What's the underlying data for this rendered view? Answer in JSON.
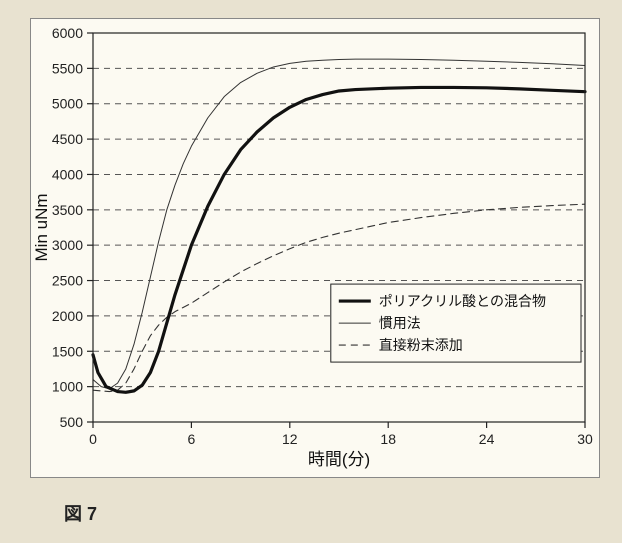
{
  "figure_label": "図 7",
  "chart": {
    "type": "line",
    "background_color": "#fcfaf2",
    "page_background": "#e8e2d0",
    "plot_background": "#fcfaf2",
    "xlabel": "時間(分)",
    "ylabel": "Min uNm",
    "label_fontsize": 17,
    "tick_fontsize": 14,
    "xlim": [
      0,
      30
    ],
    "ylim": [
      500,
      6000
    ],
    "xtick_step": 6,
    "ytick_step": 500,
    "xticks": [
      0,
      6,
      12,
      18,
      24,
      30
    ],
    "yticks": [
      500,
      1000,
      1500,
      2000,
      2500,
      3000,
      3500,
      4000,
      4500,
      5000,
      5500,
      6000
    ],
    "grid_color": "#555555",
    "grid_dash": [
      6,
      5
    ],
    "axis_color": "#222222",
    "legend": {
      "position": "right-middle",
      "box_stroke": "#222222",
      "box_fill": "#fcfaf2",
      "items": [
        {
          "label": "ポリアクリル酸との混合物",
          "series": "mix"
        },
        {
          "label": "慣用法",
          "series": "conv"
        },
        {
          "label": "直接粉末添加",
          "series": "direct"
        }
      ]
    },
    "series": {
      "mix": {
        "label": "ポリアクリル酸との混合物",
        "color": "#111111",
        "line_width": 3.2,
        "dash": null,
        "data": [
          [
            0,
            1450
          ],
          [
            0.3,
            1200
          ],
          [
            0.8,
            1000
          ],
          [
            1.5,
            930
          ],
          [
            2,
            920
          ],
          [
            2.5,
            940
          ],
          [
            3,
            1020
          ],
          [
            3.5,
            1200
          ],
          [
            4,
            1500
          ],
          [
            4.5,
            1900
          ],
          [
            5,
            2300
          ],
          [
            5.5,
            2650
          ],
          [
            6,
            3000
          ],
          [
            7,
            3550
          ],
          [
            8,
            4000
          ],
          [
            9,
            4350
          ],
          [
            10,
            4600
          ],
          [
            11,
            4800
          ],
          [
            12,
            4950
          ],
          [
            13,
            5060
          ],
          [
            14,
            5130
          ],
          [
            15,
            5180
          ],
          [
            16,
            5200
          ],
          [
            18,
            5220
          ],
          [
            20,
            5230
          ],
          [
            22,
            5230
          ],
          [
            24,
            5225
          ],
          [
            26,
            5210
          ],
          [
            28,
            5190
          ],
          [
            30,
            5170
          ]
        ]
      },
      "conv": {
        "label": "慣用法",
        "color": "#333333",
        "line_width": 1.0,
        "dash": null,
        "data": [
          [
            0,
            1100
          ],
          [
            0.5,
            1000
          ],
          [
            1,
            970
          ],
          [
            1.5,
            1050
          ],
          [
            2,
            1250
          ],
          [
            2.5,
            1600
          ],
          [
            3,
            2050
          ],
          [
            3.5,
            2550
          ],
          [
            4,
            3050
          ],
          [
            4.5,
            3500
          ],
          [
            5,
            3850
          ],
          [
            5.5,
            4150
          ],
          [
            6,
            4400
          ],
          [
            7,
            4800
          ],
          [
            8,
            5100
          ],
          [
            9,
            5300
          ],
          [
            10,
            5430
          ],
          [
            11,
            5520
          ],
          [
            12,
            5570
          ],
          [
            13,
            5600
          ],
          [
            14,
            5615
          ],
          [
            15,
            5625
          ],
          [
            16,
            5630
          ],
          [
            18,
            5630
          ],
          [
            20,
            5625
          ],
          [
            22,
            5615
          ],
          [
            24,
            5600
          ],
          [
            26,
            5585
          ],
          [
            28,
            5565
          ],
          [
            30,
            5540
          ]
        ]
      },
      "direct": {
        "label": "直接粉末添加",
        "color": "#333333",
        "line_width": 1.1,
        "dash": [
          7,
          5
        ],
        "data": [
          [
            0,
            950
          ],
          [
            1,
            930
          ],
          [
            1.5,
            950
          ],
          [
            2,
            1050
          ],
          [
            2.5,
            1250
          ],
          [
            3,
            1500
          ],
          [
            3.5,
            1720
          ],
          [
            4,
            1870
          ],
          [
            4.5,
            1980
          ],
          [
            5,
            2060
          ],
          [
            6,
            2180
          ],
          [
            7,
            2330
          ],
          [
            8,
            2480
          ],
          [
            9,
            2620
          ],
          [
            10,
            2740
          ],
          [
            11,
            2850
          ],
          [
            12,
            2950
          ],
          [
            13,
            3040
          ],
          [
            14,
            3110
          ],
          [
            15,
            3170
          ],
          [
            16,
            3220
          ],
          [
            18,
            3320
          ],
          [
            20,
            3390
          ],
          [
            22,
            3450
          ],
          [
            24,
            3500
          ],
          [
            26,
            3535
          ],
          [
            28,
            3560
          ],
          [
            30,
            3580
          ]
        ]
      }
    }
  }
}
